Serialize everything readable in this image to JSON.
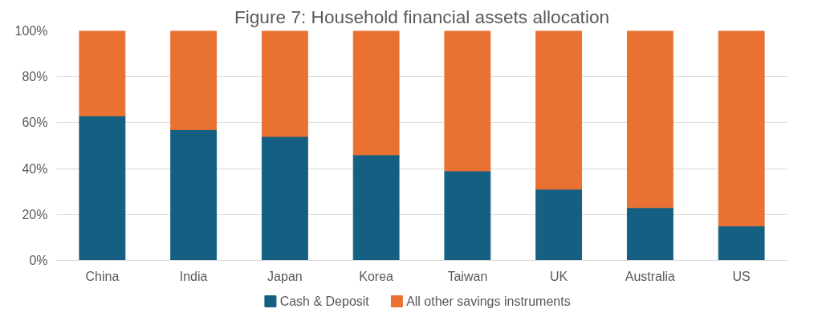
{
  "chart_data": {
    "type": "bar",
    "title": "Figure 7: Household financial assets allocation",
    "categories": [
      "China",
      "India",
      "Japan",
      "Korea",
      "Taiwan",
      "UK",
      "Australia",
      "US"
    ],
    "stacked": true,
    "series": [
      {
        "name": "Cash & Deposit",
        "color": "#156082",
        "values": [
          63,
          57,
          54,
          46,
          39,
          31,
          23,
          15
        ]
      },
      {
        "name": "All other savings instruments",
        "color": "#e97132",
        "values": [
          37,
          43,
          46,
          54,
          61,
          69,
          77,
          85
        ]
      }
    ],
    "ylim": [
      0,
      100
    ],
    "yticks": [
      {
        "value": 0,
        "label": "0%"
      },
      {
        "value": 20,
        "label": "20%"
      },
      {
        "value": 40,
        "label": "40%"
      },
      {
        "value": 60,
        "label": "60%"
      },
      {
        "value": 80,
        "label": "80%"
      },
      {
        "value": 100,
        "label": "100%"
      }
    ],
    "grid": "y",
    "legend": "bottom"
  }
}
